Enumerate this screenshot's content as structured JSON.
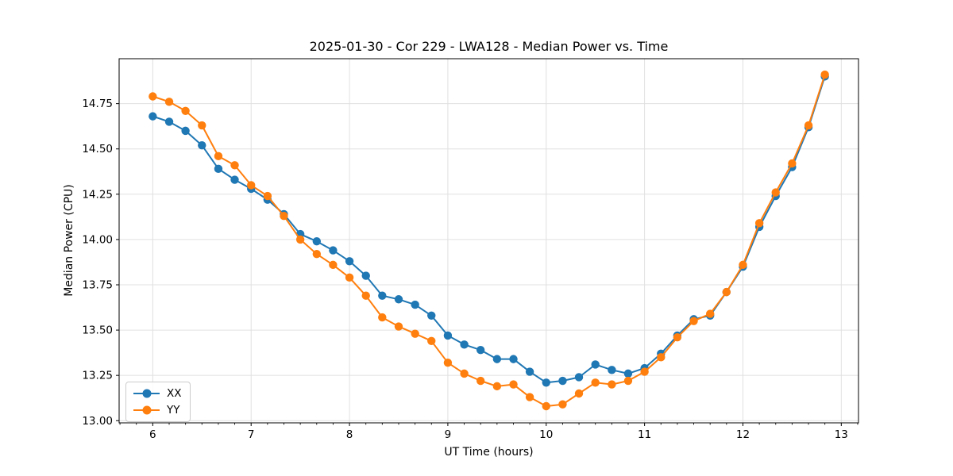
{
  "figure": {
    "background": "#ffffff",
    "text_color": "#000000",
    "grid_color": "#e0e0e0",
    "spine_color": "#000000"
  },
  "chart_data": {
    "type": "line",
    "title": "2025-01-30 - Cor 229 - LWA128 - Median Power vs. Time",
    "xlabel": "UT Time (hours)",
    "ylabel": "Median Power (CPU)",
    "xlim": [
      5.658,
      13.175
    ],
    "ylim": [
      12.988,
      14.998
    ],
    "xticks": [
      6,
      7,
      8,
      9,
      10,
      11,
      12,
      13
    ],
    "yticks": [
      13.0,
      13.25,
      13.5,
      13.75,
      14.0,
      14.25,
      14.5,
      14.75
    ],
    "x_minor_tick_step": 0.1667,
    "grid": true,
    "marker": "circle",
    "x": [
      6.0,
      6.167,
      6.333,
      6.5,
      6.667,
      6.833,
      7.0,
      7.167,
      7.333,
      7.5,
      7.667,
      7.833,
      8.0,
      8.167,
      8.333,
      8.5,
      8.667,
      8.833,
      9.0,
      9.167,
      9.333,
      9.5,
      9.667,
      9.833,
      10.0,
      10.167,
      10.333,
      10.5,
      10.667,
      10.833,
      11.0,
      11.167,
      11.333,
      11.5,
      11.667,
      11.833,
      12.0,
      12.167,
      12.333,
      12.5,
      12.667,
      12.833
    ],
    "series": [
      {
        "name": "XX",
        "color": "#1f77b4",
        "values": [
          14.68,
          14.65,
          14.6,
          14.52,
          14.39,
          14.33,
          14.28,
          14.22,
          14.14,
          14.03,
          13.99,
          13.94,
          13.88,
          13.8,
          13.69,
          13.67,
          13.64,
          13.58,
          13.47,
          13.42,
          13.39,
          13.34,
          13.34,
          13.27,
          13.21,
          13.22,
          13.24,
          13.31,
          13.28,
          13.26,
          13.29,
          13.37,
          13.47,
          13.56,
          13.58,
          13.71,
          13.85,
          14.07,
          14.24,
          14.4,
          14.62,
          14.9
        ]
      },
      {
        "name": "YY",
        "color": "#ff7f0e",
        "values": [
          14.79,
          14.76,
          14.71,
          14.63,
          14.46,
          14.41,
          14.3,
          14.24,
          14.13,
          14.0,
          13.92,
          13.86,
          13.79,
          13.69,
          13.57,
          13.52,
          13.48,
          13.44,
          13.32,
          13.26,
          13.22,
          13.19,
          13.2,
          13.13,
          13.08,
          13.09,
          13.15,
          13.21,
          13.2,
          13.22,
          13.27,
          13.35,
          13.46,
          13.55,
          13.59,
          13.71,
          13.86,
          14.09,
          14.26,
          14.42,
          14.63,
          14.91
        ]
      }
    ],
    "legend": {
      "position": "lower left",
      "labels": [
        "XX",
        "YY"
      ]
    }
  }
}
